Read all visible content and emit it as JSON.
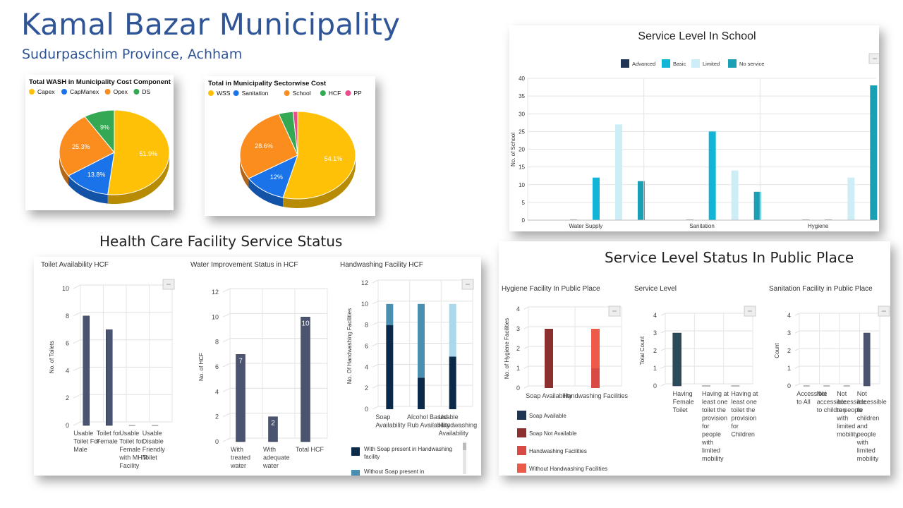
{
  "header": {
    "title": "Kamal Bazar Municipality",
    "subtitle": "Sudurpaschim Province, Achham"
  },
  "sections": {
    "hcf_title": "Health Care Facility Service Status",
    "public_title": "Service Level Status In Public Place"
  },
  "colors": {
    "navy": "#4a5470",
    "dark_navy": "#0b2a4a",
    "steel": "#4a8fb0",
    "light_blue": "#a8d8ea",
    "yellow": "#ffc107",
    "blue": "#1a73e8",
    "orange": "#fb8c1e",
    "green": "#34a853",
    "pink": "#e84c8b",
    "teal": "#1a9fb5",
    "cyan": "#12b5d6",
    "pale": "#cdeef7",
    "dark_teal": "#2b4a5a",
    "maroon": "#8b2f2f",
    "red": "#e35a4a"
  },
  "chart_data": [
    {
      "type": "pie",
      "title": "Total WASH in Municipality Cost Component",
      "labels": [
        "Capex",
        "CapManex",
        "Opex",
        "DS"
      ],
      "values": [
        51.9,
        13.8,
        25.3,
        9
      ],
      "value_labels": [
        "51.9%",
        "13.8%",
        "25.3%",
        "9%"
      ],
      "colors": [
        "#ffc107",
        "#1a73e8",
        "#fb8c1e",
        "#34a853"
      ]
    },
    {
      "type": "pie",
      "title": "Total in Municipality Sectorwise Cost",
      "labels": [
        "WSS",
        "Sanitation",
        "School",
        "HCF",
        "PP"
      ],
      "values": [
        54.1,
        12,
        28.6,
        4,
        1.3
      ],
      "value_labels": [
        "54.1%",
        "12%",
        "28.6%",
        "",
        ""
      ],
      "colors": [
        "#ffc107",
        "#1a73e8",
        "#fb8c1e",
        "#34a853",
        "#e84c8b"
      ]
    },
    {
      "type": "bar",
      "title": "Service Level In School",
      "categories": [
        "Water Supply",
        "Sanitation",
        "Hygiene"
      ],
      "series": [
        {
          "name": "Advanced",
          "values": [
            0,
            0,
            0
          ],
          "color": "#1f3556"
        },
        {
          "name": "Basic",
          "values": [
            12,
            25,
            0
          ],
          "color": "#12b5d6"
        },
        {
          "name": "Limited",
          "values": [
            27,
            14,
            12
          ],
          "color": "#cdeef7"
        },
        {
          "name": "No service",
          "values": [
            11,
            8,
            38
          ],
          "color": "#1a9fb5"
        }
      ],
      "ylabel": "No. of School",
      "ylim": [
        0,
        40
      ],
      "yticks": [
        "0",
        "5",
        "10",
        "15",
        "20",
        "25",
        "30",
        "35",
        "40"
      ]
    },
    {
      "type": "bar",
      "title": "Toilet Availability HCF",
      "categories": [
        "Usable Toilet For Male",
        "Toilet for Female",
        "Usable Toilet for Female with MHM Facility",
        "Usable Disable Friendly Toilet"
      ],
      "values": [
        8,
        7,
        0,
        0
      ],
      "ylabel": "No. of Toilets",
      "ylim": [
        0,
        10
      ],
      "yticks": [
        "0",
        "2",
        "4",
        "6",
        "8",
        "10"
      ]
    },
    {
      "type": "bar",
      "title": "Water Improvement Status in HCF",
      "categories": [
        "With treated water",
        "With adequate water",
        "Total HCF"
      ],
      "values": [
        7,
        2,
        10
      ],
      "ylabel": "No. of HCF",
      "ylim": [
        0,
        12
      ],
      "yticks": [
        "0",
        "2",
        "4",
        "6",
        "8",
        "10",
        "12"
      ]
    },
    {
      "type": "bar",
      "title": "Handwashing Facility HCF",
      "categories": [
        "Soap Availability",
        "Alcohol Based Rub Availability",
        "Usable Handwashing Availability"
      ],
      "series": [
        {
          "name": "With Soap present in Handwashing facility",
          "values": [
            8,
            3,
            5
          ],
          "colors": [
            "#0b2a4a",
            "#0b2a4a",
            "#0b2a4a"
          ]
        },
        {
          "name": "Without Soap present in",
          "values": [
            2,
            7,
            5
          ],
          "colors": [
            "#4a8fb0",
            "#4a8fb0",
            "#a8d8ea"
          ]
        }
      ],
      "ylabel": "No. Of Handwashing Facilities",
      "ylim": [
        0,
        12
      ],
      "yticks": [
        "0",
        "2",
        "4",
        "6",
        "8",
        "10",
        "12"
      ]
    },
    {
      "type": "bar",
      "title": "Hygiene Facility In Public Place",
      "categories": [
        "Soap Availability",
        "Handwashing Facilities"
      ],
      "series": [
        {
          "name": "Soap Available",
          "values": [
            0,
            0
          ],
          "color": "#1f3556"
        },
        {
          "name": "Soap Not Available",
          "values": [
            3,
            0
          ],
          "color": "#8b2f2f"
        },
        {
          "name": "Handwashing Facilities",
          "values": [
            0,
            1
          ],
          "color": "#d94a44"
        },
        {
          "name": "Without Handwashing Facilities",
          "values": [
            0,
            2
          ],
          "color": "#ee5a4a"
        }
      ],
      "ylabel": "No. of Hygiene Facilities",
      "ylim": [
        0,
        4
      ],
      "yticks": [
        "0",
        "1",
        "2",
        "3",
        "4"
      ]
    },
    {
      "type": "bar",
      "title": "Service Level",
      "categories": [
        "Having Female Toilet",
        "Having at least one toilet the provision for people with limited mobility",
        "Having at least one toilet the provision for Children"
      ],
      "values": [
        3,
        0,
        0
      ],
      "ylabel": "Total Count",
      "ylim": [
        0,
        4
      ],
      "yticks": [
        "0",
        "1",
        "2",
        "3",
        "4"
      ]
    },
    {
      "type": "bar",
      "title": "Sanitation Facility in Public Place",
      "categories": [
        "Accessible to All",
        "Not accessible to children",
        "Not accessible to people with limited mobility",
        "Not accessible to children and people with limited mobility"
      ],
      "values": [
        0,
        0,
        0,
        3
      ],
      "ylabel": "Count",
      "ylim": [
        0,
        4
      ],
      "yticks": [
        "0",
        "1",
        "2",
        "3",
        "4"
      ]
    }
  ]
}
